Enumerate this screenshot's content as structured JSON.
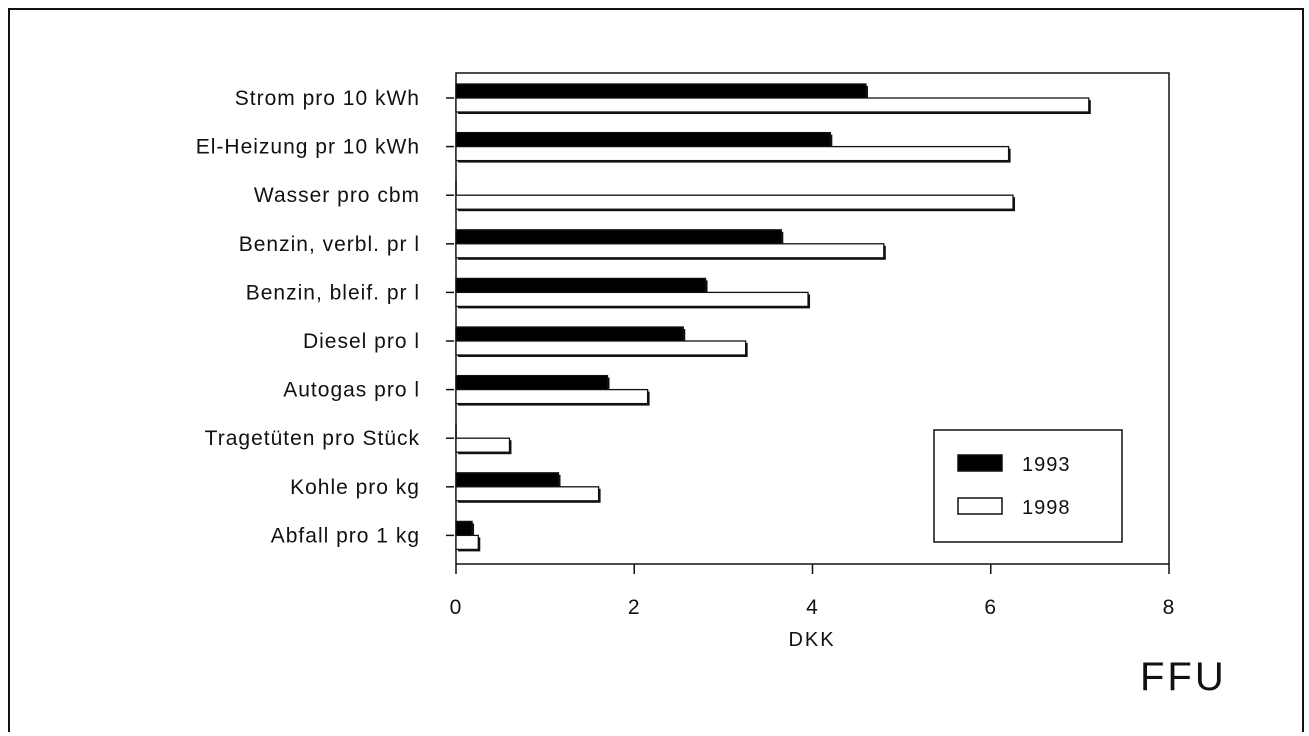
{
  "chart_data": {
    "type": "bar",
    "orientation": "horizontal",
    "categories": [
      "Strom pro 10 kWh",
      "El-Heizung pr 10 kWh",
      "Wasser pro cbm",
      "Benzin, verbl. pr l",
      "Benzin, bleif. pr l",
      "Diesel pro l",
      "Autogas pro l",
      "Tragetüten pro Stück",
      "Kohle pro kg",
      "Abfall pro 1 kg"
    ],
    "series": [
      {
        "name": "1993",
        "color": "#000000",
        "values": [
          4.6,
          4.2,
          0.0,
          3.65,
          2.8,
          2.55,
          1.7,
          0.0,
          1.15,
          0.18
        ]
      },
      {
        "name": "1998",
        "color": "#ffffff",
        "values": [
          7.1,
          6.2,
          6.25,
          4.8,
          3.95,
          3.25,
          2.15,
          0.6,
          1.6,
          0.25
        ]
      }
    ],
    "xlabel": "DKK",
    "ylabel": "",
    "xlim": [
      0,
      8
    ],
    "xticks": [
      "0",
      "2",
      "4",
      "6",
      "8"
    ],
    "legend_position": "bottom-right",
    "grid": false
  },
  "watermark": "FFU"
}
